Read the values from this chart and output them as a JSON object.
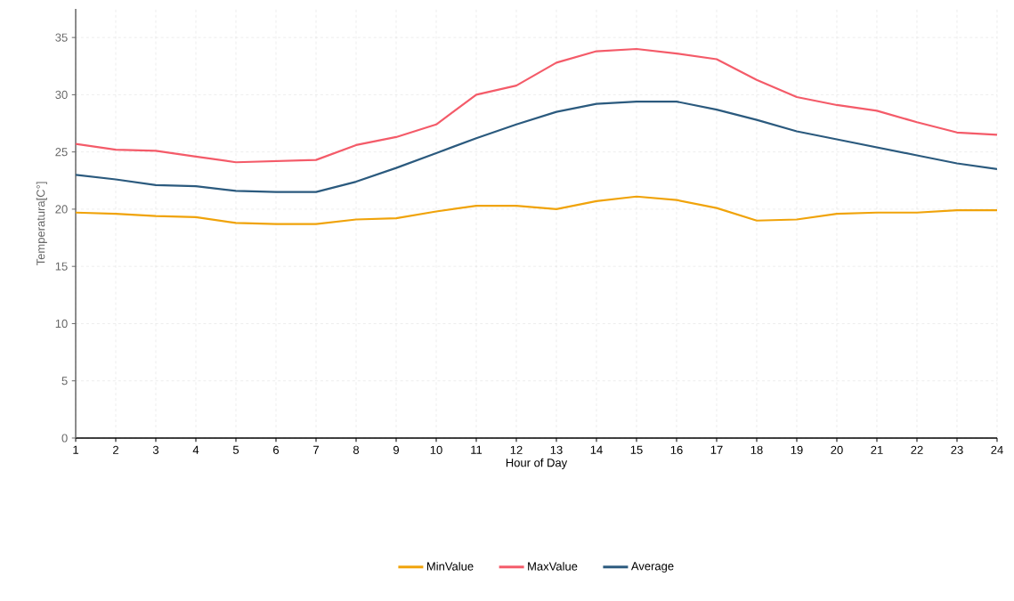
{
  "chart_data": {
    "type": "line",
    "xlabel": "Hour of Day",
    "ylabel": "Temperatura[C°]",
    "x": [
      1,
      2,
      3,
      4,
      5,
      6,
      7,
      8,
      9,
      10,
      11,
      12,
      13,
      14,
      15,
      16,
      17,
      18,
      19,
      20,
      21,
      22,
      23,
      24
    ],
    "xlim": [
      1,
      24
    ],
    "xticks": [
      1,
      2,
      3,
      4,
      5,
      6,
      7,
      8,
      9,
      10,
      11,
      12,
      13,
      14,
      15,
      16,
      17,
      18,
      19,
      20,
      21,
      22,
      23,
      24
    ],
    "ylim": [
      0,
      37.5
    ],
    "yticks": [
      0,
      5,
      10,
      15,
      20,
      25,
      30,
      35
    ],
    "grid": true,
    "legend": "bottom",
    "marker": "none",
    "line_style": "solid",
    "series": [
      {
        "name": "MinValue",
        "color": "#f0a30a",
        "values": [
          19.7,
          19.6,
          19.4,
          19.3,
          18.8,
          18.7,
          18.7,
          19.1,
          19.2,
          19.8,
          20.3,
          20.3,
          20.0,
          20.7,
          21.1,
          20.8,
          20.1,
          19.0,
          19.1,
          19.6,
          19.7,
          19.7,
          19.9,
          19.9
        ]
      },
      {
        "name": "MaxValue",
        "color": "#f45b69",
        "values": [
          25.7,
          25.2,
          25.1,
          24.6,
          24.1,
          24.2,
          24.3,
          25.6,
          26.3,
          27.4,
          30.0,
          30.8,
          32.8,
          33.8,
          34.0,
          33.6,
          33.1,
          31.3,
          29.8,
          29.1,
          28.6,
          27.6,
          26.7,
          26.5
        ]
      },
      {
        "name": "Average",
        "color": "#2b5a7e",
        "values": [
          23.0,
          22.6,
          22.1,
          22.0,
          21.6,
          21.5,
          21.5,
          22.4,
          23.6,
          24.9,
          26.2,
          27.4,
          28.5,
          29.2,
          29.4,
          29.4,
          28.7,
          27.8,
          26.8,
          26.1,
          25.4,
          24.7,
          24.0,
          23.5
        ]
      }
    ]
  }
}
